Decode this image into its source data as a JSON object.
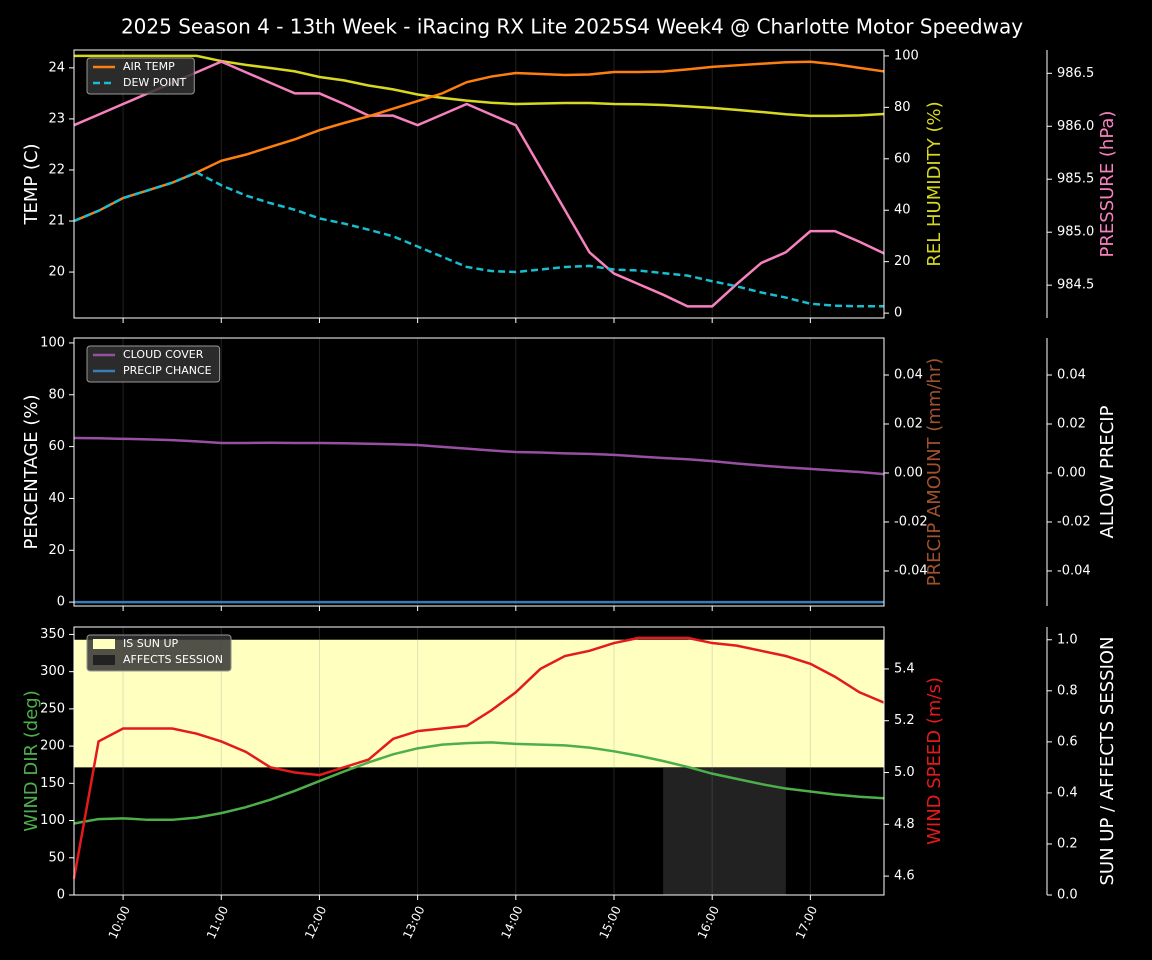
{
  "chart_data": [
    {
      "type": "line",
      "title": "2025 Season 4 - 13th Week - iRacing RX Lite 2025S4 Week4 @ Charlotte Motor Speedway",
      "x": [
        "09:30",
        "09:45",
        "10:00",
        "10:15",
        "10:30",
        "10:45",
        "11:00",
        "11:15",
        "11:30",
        "11:45",
        "12:00",
        "12:15",
        "12:30",
        "12:45",
        "13:00",
        "13:15",
        "13:30",
        "13:45",
        "14:00",
        "14:15",
        "14:30",
        "14:45",
        "15:00",
        "15:15",
        "15:30",
        "15:45",
        "16:00",
        "16:15",
        "16:30",
        "16:45",
        "17:00",
        "17:15",
        "17:30",
        "17:45"
      ],
      "xlim": [
        "09:30",
        "17:45"
      ],
      "xticks": [
        "10:00",
        "11:00",
        "12:00",
        "13:00",
        "14:00",
        "15:00",
        "16:00",
        "17:00"
      ],
      "ylabel": "TEMP (C)",
      "ylabel_color": "#ffffff",
      "ylim": [
        19.1,
        24.35
      ],
      "yticks": [
        20,
        21,
        22,
        23,
        24
      ],
      "y2label": "REL HUMIDITY (%)",
      "y2label_color": "#d8d820",
      "y2lim": [
        -1.9,
        102.3
      ],
      "y2ticks": [
        0,
        20,
        40,
        60,
        80,
        100
      ],
      "y3label": "PRESSURE (hPa)",
      "y3label_color": "#f781bf",
      "y3lim": [
        984.19,
        986.72
      ],
      "y3ticks": [
        984.5,
        {
          "value": 985,
          "label": "985.0"
        },
        985.5,
        {
          "value": 986,
          "label": "986.0"
        },
        986.5
      ],
      "legend": "upper left",
      "series": [
        {
          "color": "#d8d820",
          "axis": "y2",
          "values": [
            100,
            100,
            100,
            100,
            100,
            100,
            98,
            96.5,
            95.3,
            94,
            91.8,
            90.5,
            88.5,
            87,
            85,
            83.7,
            82.6,
            81.8,
            81.3,
            81.5,
            81.7,
            81.7,
            81.3,
            81.2,
            80.9,
            80.4,
            79.8,
            79,
            78.2,
            77.3,
            76.7,
            76.7,
            76.9,
            77.4
          ]
        },
        {
          "color": "#f781bf",
          "axis": "y3",
          "values": [
            986.01,
            986.11,
            986.21,
            986.31,
            986.41,
            986.51,
            986.61,
            986.51,
            986.41,
            986.31,
            986.31,
            986.21,
            986.1,
            986.1,
            986.01,
            986.11,
            986.21,
            986.11,
            986.01,
            985.61,
            985.21,
            984.81,
            984.61,
            984.51,
            984.41,
            984.3,
            984.3,
            984.51,
            984.71,
            984.81,
            985.01,
            985.01,
            984.91,
            984.8
          ]
        },
        {
          "name": "AIR TEMP",
          "color": "#ff7f0e",
          "values": [
            21.0,
            21.2,
            21.45,
            21.6,
            21.75,
            21.95,
            22.18,
            22.3,
            22.45,
            22.6,
            22.78,
            22.92,
            23.05,
            23.2,
            23.35,
            23.5,
            23.72,
            23.83,
            23.9,
            23.88,
            23.86,
            23.87,
            23.92,
            23.92,
            23.93,
            23.97,
            24.02,
            24.05,
            24.08,
            24.11,
            24.12,
            24.07,
            24.0,
            23.93
          ]
        },
        {
          "name": "DEW POINT",
          "color": "#17becf",
          "style": "dashed",
          "values": [
            21.0,
            21.2,
            21.45,
            21.6,
            21.75,
            21.95,
            21.7,
            21.5,
            21.35,
            21.22,
            21.05,
            20.95,
            20.83,
            20.7,
            20.5,
            20.3,
            20.1,
            20.02,
            20.0,
            20.05,
            20.1,
            20.12,
            20.05,
            20.03,
            19.98,
            19.93,
            19.82,
            19.72,
            19.6,
            19.5,
            19.38,
            19.34,
            19.33,
            19.33
          ]
        }
      ]
    },
    {
      "type": "line",
      "x": [
        "09:30",
        "09:45",
        "10:00",
        "10:15",
        "10:30",
        "10:45",
        "11:00",
        "11:15",
        "11:30",
        "11:45",
        "12:00",
        "12:15",
        "12:30",
        "12:45",
        "13:00",
        "13:15",
        "13:30",
        "13:45",
        "14:00",
        "14:15",
        "14:30",
        "14:45",
        "15:00",
        "15:15",
        "15:30",
        "15:45",
        "16:00",
        "16:15",
        "16:30",
        "16:45",
        "17:00",
        "17:15",
        "17:30",
        "17:45"
      ],
      "xlim": [
        "09:30",
        "17:45"
      ],
      "xticks": [
        "10:00",
        "11:00",
        "12:00",
        "13:00",
        "14:00",
        "15:00",
        "16:00",
        "17:00"
      ],
      "ylabel": "PERCENTAGE (%)",
      "ylabel_color": "#ffffff",
      "ylim": [
        -1.5,
        101.9
      ],
      "yticks": [
        0,
        20,
        40,
        60,
        80,
        100
      ],
      "y2label": "PRECIP AMOUNT (mm/hr)",
      "y2label_color": "#a0522d",
      "y2lim": [
        -0.0543,
        0.0551
      ],
      "y2ticks": [
        -0.04,
        -0.02,
        {
          "value": 0,
          "label": "0.00"
        },
        0.02,
        0.04
      ],
      "y3label": "ALLOW PRECIP",
      "y3label_color": "#ffffff",
      "y3lim": [
        -0.0543,
        0.0551
      ],
      "y3ticks": [
        -0.04,
        -0.02,
        {
          "value": 0,
          "label": "0.00"
        },
        0.02,
        0.04
      ],
      "legend": "upper left",
      "series": [
        {
          "name": "CLOUD COVER",
          "color": "#984ea3",
          "values": [
            63.3,
            63.2,
            63.0,
            62.8,
            62.5,
            62.0,
            61.4,
            61.4,
            61.5,
            61.4,
            61.4,
            61.3,
            61.1,
            60.9,
            60.6,
            59.9,
            59.2,
            58.5,
            57.9,
            57.7,
            57.4,
            57.2,
            56.8,
            56.2,
            55.6,
            55.1,
            54.4,
            53.5,
            52.7,
            52.0,
            51.4,
            50.8,
            50.2,
            49.4
          ]
        },
        {
          "name": "PRECIP CHANCE",
          "color": "#377eb8",
          "values": [
            0,
            0,
            0,
            0,
            0,
            0,
            0,
            0,
            0,
            0,
            0,
            0,
            0,
            0,
            0,
            0,
            0,
            0,
            0,
            0,
            0,
            0,
            0,
            0,
            0,
            0,
            0,
            0,
            0,
            0,
            0,
            0,
            0,
            0
          ]
        }
      ]
    },
    {
      "type": "line",
      "x": [
        "09:30",
        "09:45",
        "10:00",
        "10:15",
        "10:30",
        "10:45",
        "11:00",
        "11:15",
        "11:30",
        "11:45",
        "12:00",
        "12:15",
        "12:30",
        "12:45",
        "13:00",
        "13:15",
        "13:30",
        "13:45",
        "14:00",
        "14:15",
        "14:30",
        "14:45",
        "15:00",
        "15:15",
        "15:30",
        "15:45",
        "16:00",
        "16:15",
        "16:30",
        "16:45",
        "17:00",
        "17:15",
        "17:30",
        "17:45"
      ],
      "xlim": [
        "09:30",
        "17:45"
      ],
      "xticks": [
        "10:00",
        "11:00",
        "12:00",
        "13:00",
        "14:00",
        "15:00",
        "16:00",
        "17:00"
      ],
      "ylabel": "WIND DIR (deg)",
      "ylabel_color": "#4daf4a",
      "ylim": [
        0,
        360
      ],
      "yticks": [
        0,
        50,
        100,
        150,
        200,
        250,
        300,
        350
      ],
      "y2label": "WIND SPEED (m/s)",
      "y2label_color": "#e41a1c",
      "y2lim": [
        4.527,
        5.562
      ],
      "y2ticks": [
        4.6,
        4.8,
        {
          "value": 5,
          "label": "5.0"
        },
        5.2,
        5.4
      ],
      "y3label": "SUN UP / AFFECTS SESSION",
      "y3label_color": "#ffffff",
      "y3lim": [
        0,
        1.05
      ],
      "y3ticks": [
        {
          "value": 0,
          "label": "0.0"
        },
        0.2,
        0.4,
        0.6,
        0.8,
        {
          "value": 1,
          "label": "1.0"
        }
      ],
      "legend": "upper left",
      "series": [
        {
          "name": "IS SUN UP",
          "color": "#ffffc0",
          "kind": "area",
          "axis": "y3",
          "base": 0.5,
          "values": [
            1,
            1,
            1,
            1,
            1,
            1,
            1,
            1,
            1,
            1,
            1,
            1,
            1,
            1,
            1,
            1,
            1,
            1,
            1,
            1,
            1,
            1,
            1,
            1,
            1,
            1,
            1,
            1,
            1,
            1,
            1,
            1,
            1,
            1
          ]
        },
        {
          "name": "AFFECTS SESSION",
          "color": "#222222",
          "kind": "area",
          "axis": "y3",
          "values": [
            null,
            null,
            null,
            null,
            null,
            null,
            null,
            null,
            null,
            null,
            null,
            null,
            null,
            null,
            null,
            null,
            null,
            null,
            null,
            null,
            null,
            null,
            null,
            null,
            0.5,
            0.5,
            0.5,
            0.5,
            0.5,
            0.5,
            null,
            null,
            null,
            null
          ]
        },
        {
          "color": "#4daf4a",
          "values": [
            96,
            102,
            103,
            101,
            101,
            104,
            110,
            118,
            128,
            140,
            153,
            166,
            178,
            189,
            197,
            202,
            204,
            205,
            203,
            202,
            201,
            198,
            193,
            187,
            180,
            172,
            163,
            156,
            149,
            143,
            139,
            135,
            132,
            130
          ]
        },
        {
          "color": "#e41a1c",
          "axis": "y2",
          "values": [
            4.59,
            5.12,
            5.17,
            5.17,
            5.17,
            5.15,
            5.12,
            5.08,
            5.02,
            5.0,
            4.99,
            5.02,
            5.05,
            5.13,
            5.16,
            5.17,
            5.18,
            5.24,
            5.31,
            5.4,
            5.45,
            5.47,
            5.5,
            5.52,
            5.52,
            5.52,
            5.5,
            5.49,
            5.47,
            5.45,
            5.42,
            5.37,
            5.31,
            5.27
          ]
        }
      ]
    }
  ]
}
